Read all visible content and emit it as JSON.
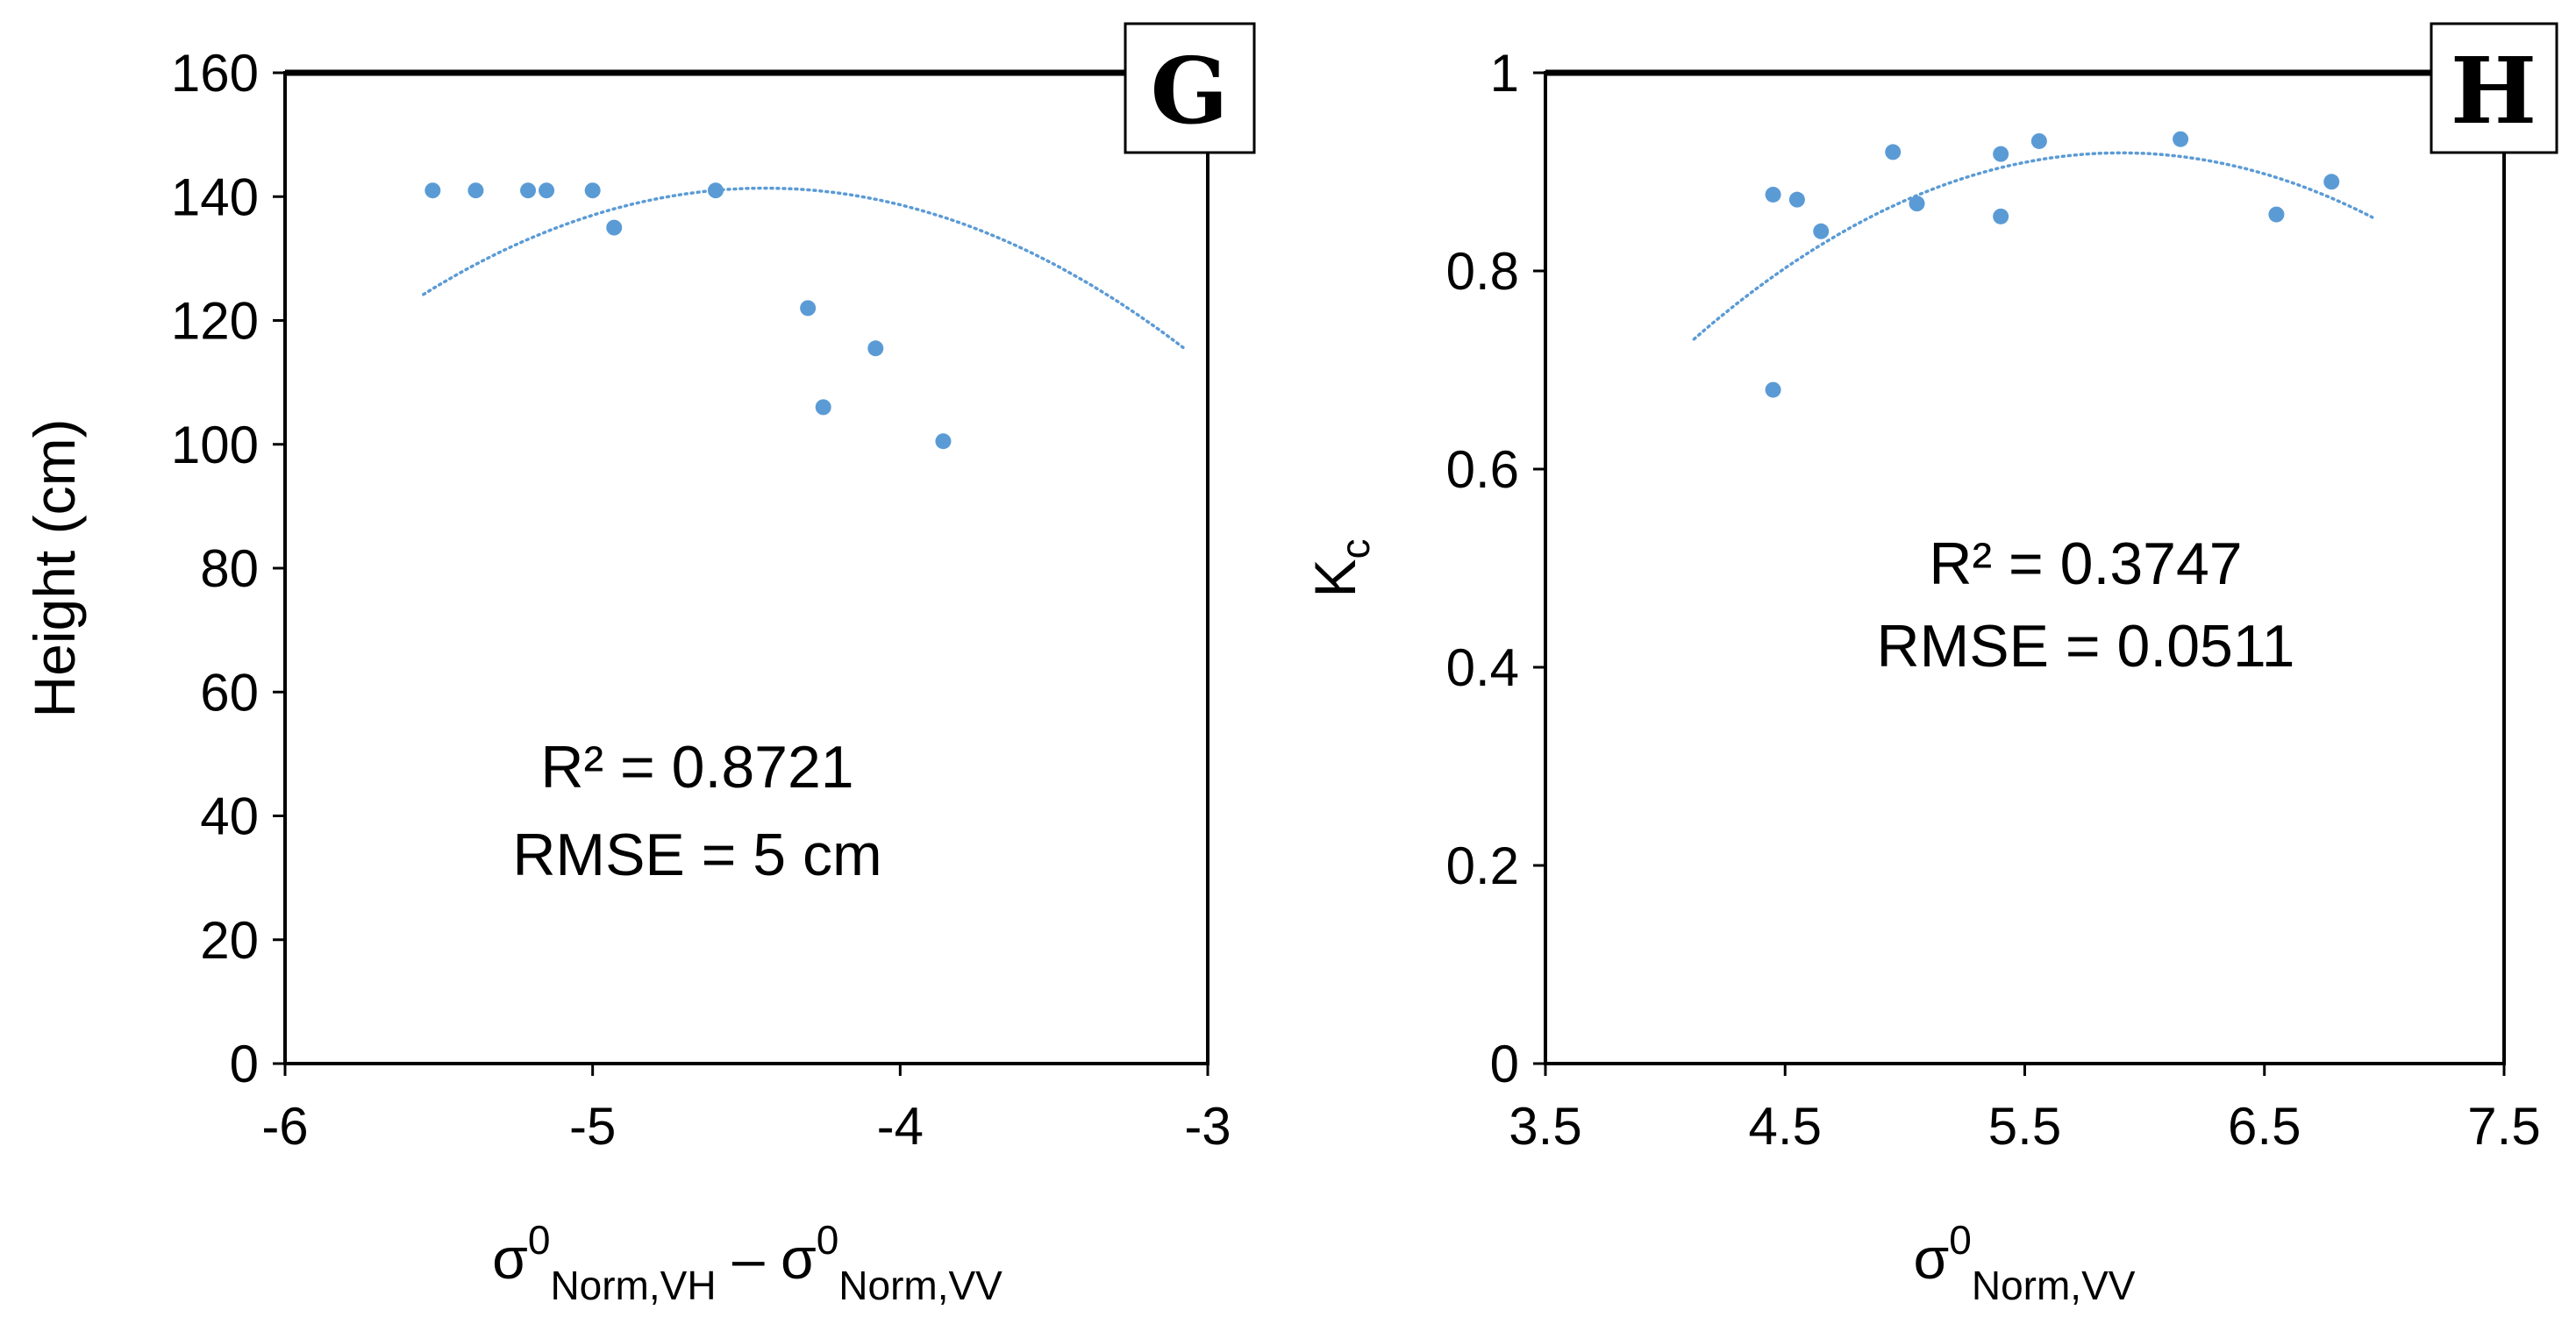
{
  "chart_data": [
    {
      "type": "scatter",
      "panel_label": "G",
      "x_min": -6,
      "x_max": -3,
      "y_min": 0,
      "y_max": 160,
      "xticks": [
        "-6",
        "-5",
        "-4",
        "-3"
      ],
      "yticks": [
        "0",
        "20",
        "40",
        "60",
        "80",
        "100",
        "120",
        "140",
        "160"
      ],
      "ylabel": "Height (cm)",
      "xlabel": {
        "p1": "σ",
        "sup1": "0",
        "sub1": "Norm,VH",
        "mid": " – σ",
        "sup2": "0",
        "sub2": "Norm,VV"
      },
      "points": [
        {
          "x": -5.52,
          "y": 141
        },
        {
          "x": -5.38,
          "y": 141
        },
        {
          "x": -5.21,
          "y": 141
        },
        {
          "x": -5.15,
          "y": 141
        },
        {
          "x": -5.0,
          "y": 141
        },
        {
          "x": -4.93,
          "y": 135
        },
        {
          "x": -4.6,
          "y": 141
        },
        {
          "x": -4.3,
          "y": 122
        },
        {
          "x": -4.25,
          "y": 106
        },
        {
          "x": -4.08,
          "y": 115.5
        },
        {
          "x": -3.86,
          "y": 100.5
        }
      ],
      "trendline": {
        "x_start": -5.55,
        "x_end": -3.08,
        "coef": [
          -13.92,
          -123.6,
          -133
        ]
      },
      "annotation": {
        "r2": "R² = 0.8721",
        "rmse": "RMSE = 5 cm"
      },
      "colors": {
        "points": "#5b9bd5",
        "trend": "#5b9bd5"
      }
    },
    {
      "type": "scatter",
      "panel_label": "H",
      "x_min": 3.5,
      "x_max": 7.5,
      "y_min": 0,
      "y_max": 1,
      "xticks": [
        "3.5",
        "4.5",
        "5.5",
        "6.5",
        "7.5"
      ],
      "yticks": [
        "0",
        "0.2",
        "0.4",
        "0.6",
        "0.8",
        "1"
      ],
      "ylabel": {
        "main": "K",
        "sub": "c"
      },
      "xlabel": {
        "p1": "σ",
        "sup1": "0",
        "sub1": "Norm,VV"
      },
      "points": [
        {
          "x": 4.45,
          "y": 0.68
        },
        {
          "x": 4.45,
          "y": 0.877
        },
        {
          "x": 4.55,
          "y": 0.872
        },
        {
          "x": 4.65,
          "y": 0.84
        },
        {
          "x": 4.95,
          "y": 0.92
        },
        {
          "x": 5.05,
          "y": 0.868
        },
        {
          "x": 5.4,
          "y": 0.918
        },
        {
          "x": 5.4,
          "y": 0.855
        },
        {
          "x": 5.56,
          "y": 0.931
        },
        {
          "x": 6.15,
          "y": 0.933
        },
        {
          "x": 6.55,
          "y": 0.857
        },
        {
          "x": 6.78,
          "y": 0.89
        }
      ],
      "trendline": {
        "x_start": 4.12,
        "x_end": 6.95,
        "coef": [
          -0.0592,
          0.6988,
          -1.143
        ]
      },
      "annotation": {
        "r2": "R² = 0.3747",
        "rmse": "RMSE = 0.0511"
      },
      "colors": {
        "points": "#5b9bd5",
        "trend": "#5b9bd5"
      }
    }
  ]
}
